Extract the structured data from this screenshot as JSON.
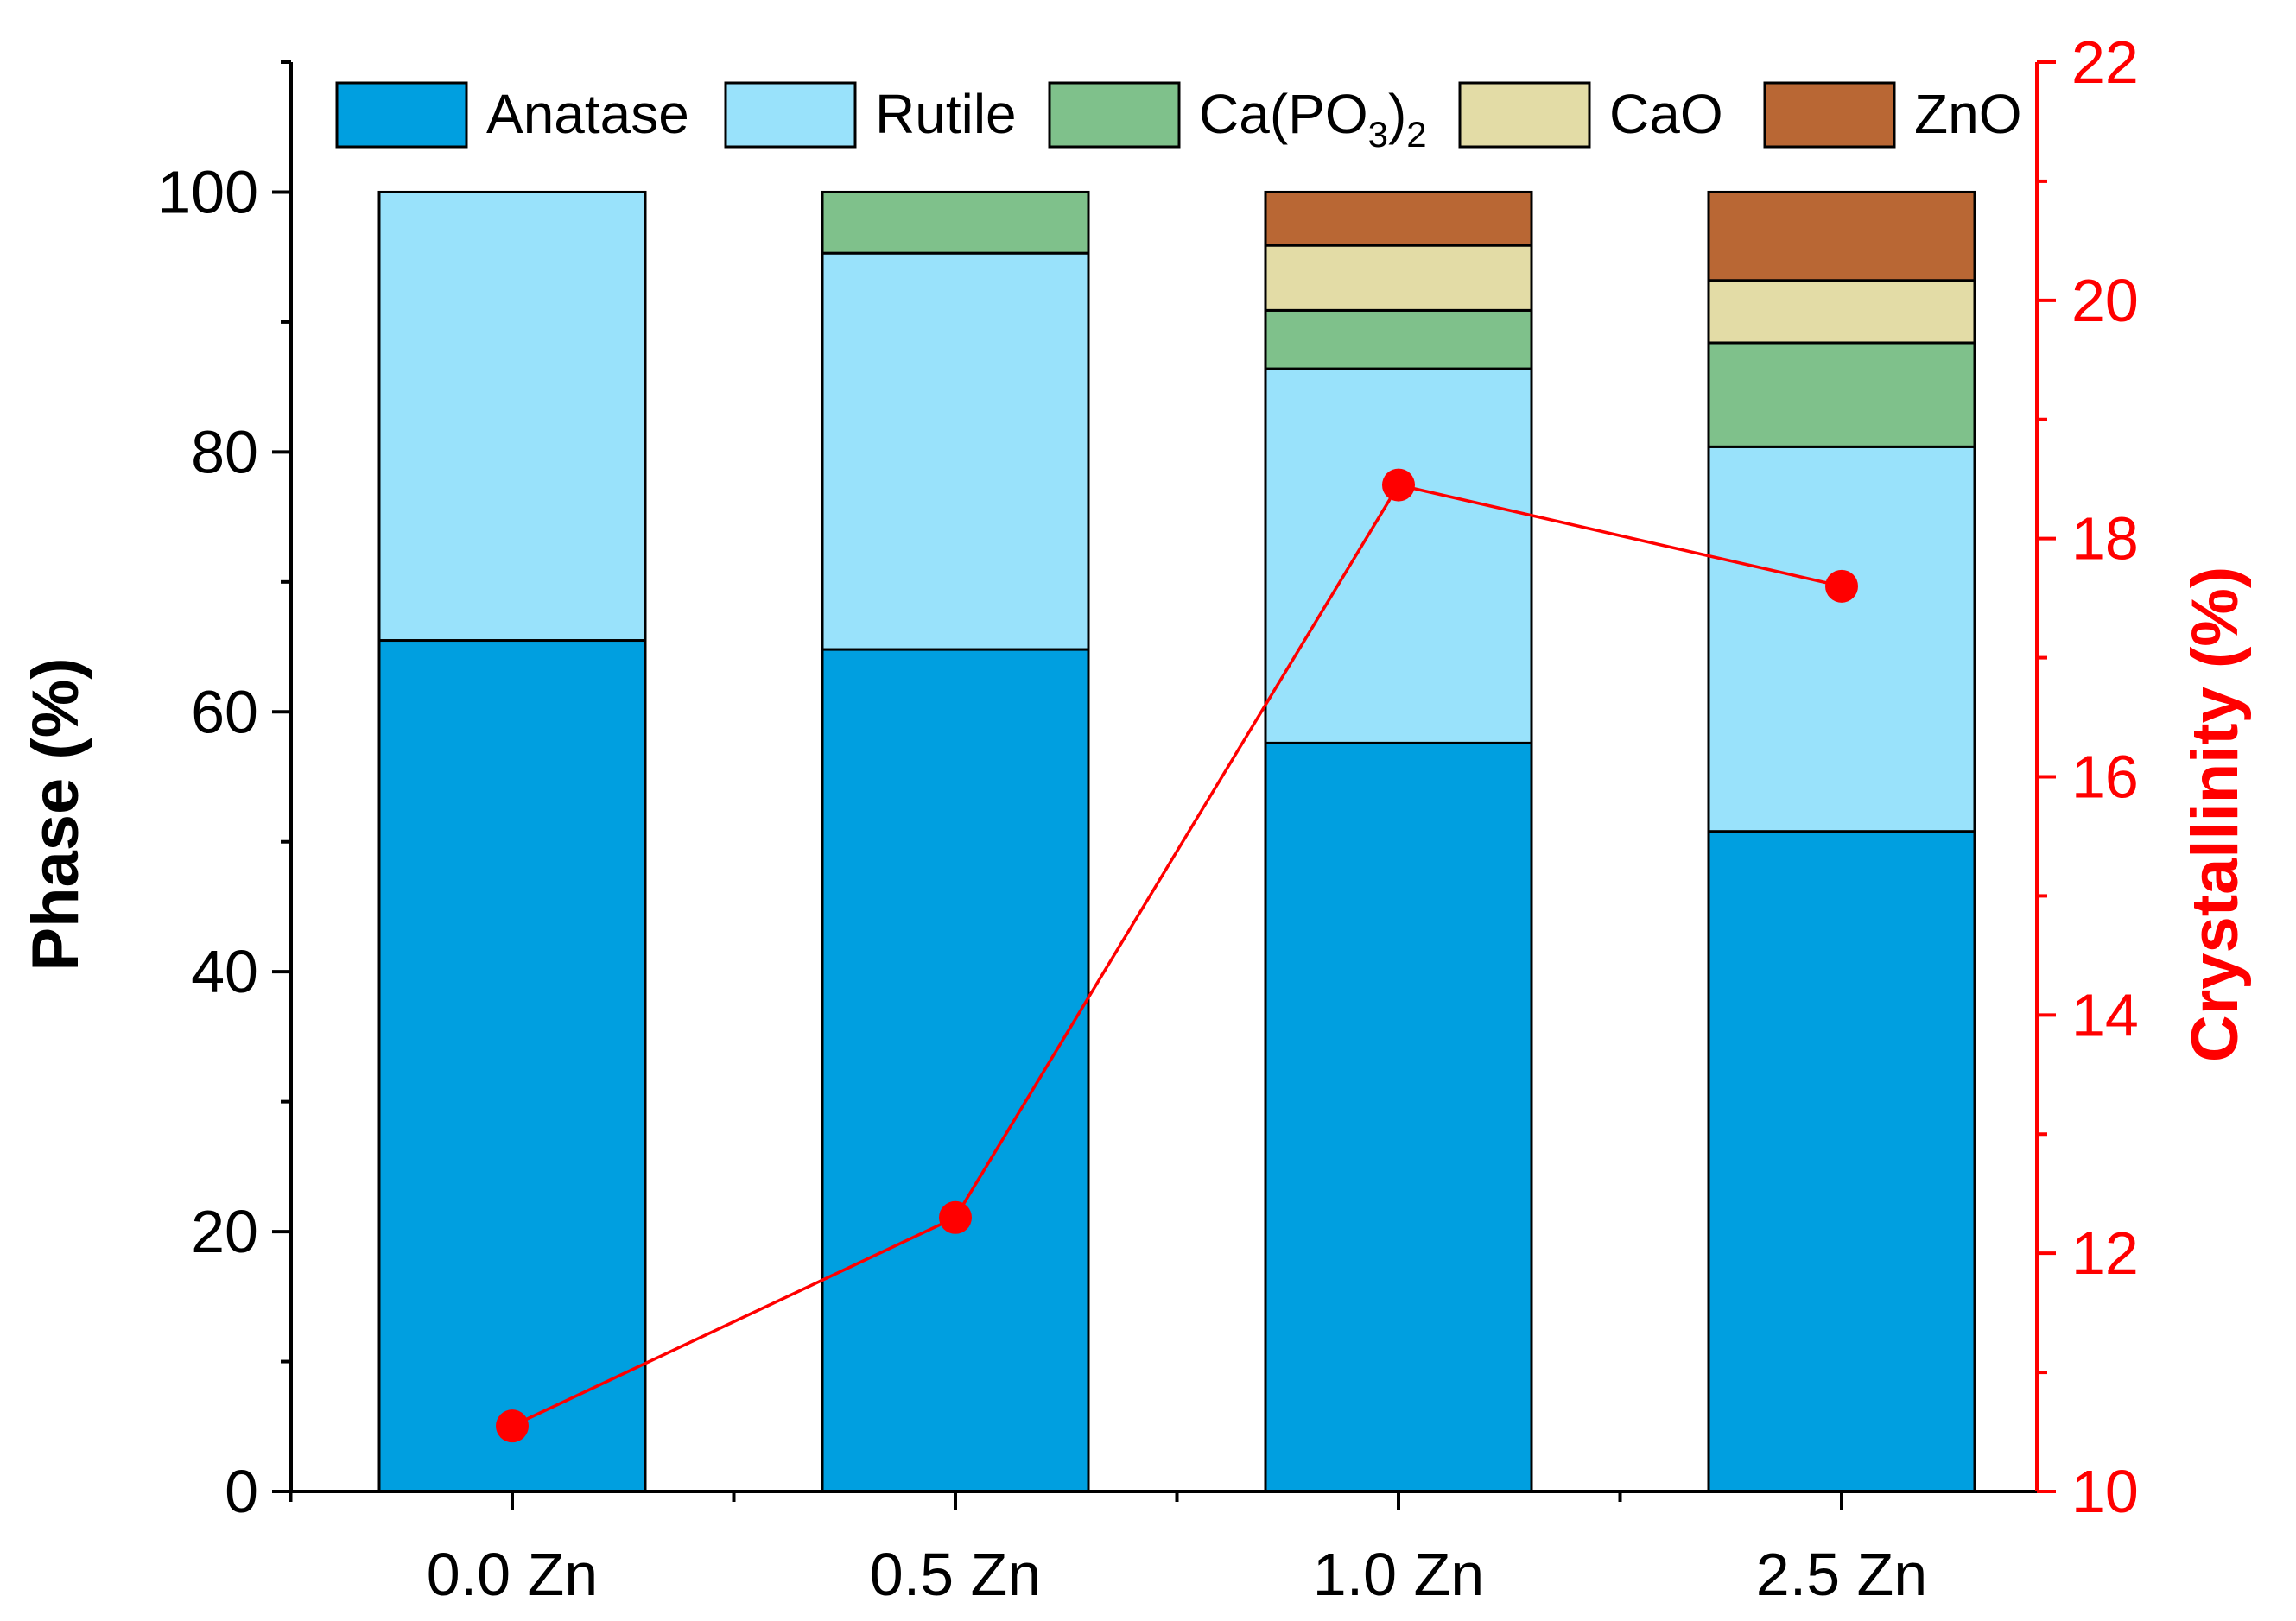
{
  "chart_data": {
    "type": "bar",
    "stacked": true,
    "categories": [
      "0.0 Zn",
      "0.5 Zn",
      "1.0 Zn",
      "2.5 Zn"
    ],
    "series": [
      {
        "name": "Anatase",
        "legend_base": "Anatase",
        "color": "#009fe0",
        "values": [
          65.5,
          64.8,
          57.6,
          50.8
        ]
      },
      {
        "name": "Rutile",
        "legend_base": "Rutile",
        "color": "#99e2fb",
        "values": [
          34.5,
          30.5,
          28.8,
          29.6
        ]
      },
      {
        "name": "Ca(PO3)2",
        "legend_base": "Ca(PO",
        "legend_sub1": "3",
        "legend_mid": ")",
        "legend_sub2": "2",
        "color": "#7fc18b",
        "values": [
          0,
          4.7,
          4.5,
          8.0
        ]
      },
      {
        "name": "CaO",
        "legend_base": "CaO",
        "color": "#e3dca6",
        "values": [
          0,
          0,
          5.0,
          4.8
        ]
      },
      {
        "name": "ZnO",
        "legend_base": "ZnO",
        "color": "#b96734",
        "values": [
          0,
          0,
          4.1,
          6.8
        ]
      }
    ],
    "line_series": {
      "name": "Crystallinity",
      "color": "#ff0000",
      "axis": "right",
      "values": [
        10.55,
        12.3,
        18.45,
        17.6
      ]
    },
    "ylabel": "Phase (%)",
    "ylabel_right": "Crystallinity (%)",
    "xlabel": "",
    "ylim": [
      0,
      110
    ],
    "ylim_right": [
      10,
      22
    ],
    "yticks": [
      0,
      20,
      40,
      60,
      80,
      100
    ],
    "yticks_right": [
      10,
      12,
      14,
      16,
      18,
      20,
      22
    ],
    "legend_position": "top"
  }
}
